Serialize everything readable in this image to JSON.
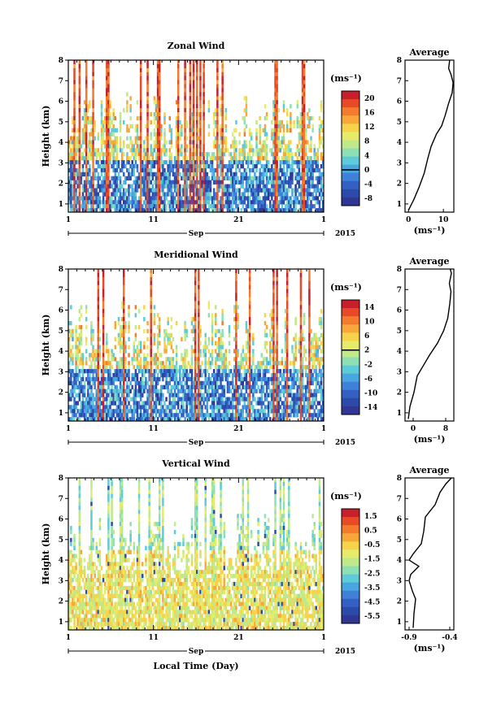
{
  "chart_data": [
    {
      "type": "heatmap",
      "title": "Zonal Wind",
      "ylabel": "Height (km)",
      "y_ticks": [
        "1",
        "2",
        "3",
        "4",
        "5",
        "6",
        "7",
        "8"
      ],
      "x_ticks": [
        "1",
        "11",
        "21",
        "1"
      ],
      "x_month": "Sep",
      "x_year": "2015",
      "colorbar_unit": "(ms⁻¹)",
      "colorbar_ticks": [
        "20",
        "16",
        "12",
        "8",
        "4",
        "0",
        "-4",
        "-8"
      ],
      "colorbar_range": [
        -10,
        22
      ],
      "ylim": [
        0.6,
        8
      ],
      "profile": {
        "title": "Average",
        "x_ticks": [
          "0",
          "10"
        ],
        "xlim": [
          -1,
          13
        ],
        "xlabel": "(ms⁻¹)",
        "y_ticks": [
          "1",
          "2",
          "3",
          "4",
          "5",
          "6",
          "7",
          "8"
        ],
        "points": [
          [
            0,
            0.7
          ],
          [
            1.5,
            1.2
          ],
          [
            3,
            1.8
          ],
          [
            4.5,
            2.5
          ],
          [
            5.5,
            3.2
          ],
          [
            6.5,
            3.8
          ],
          [
            8,
            4.4
          ],
          [
            9.5,
            4.8
          ],
          [
            10.5,
            5.3
          ],
          [
            11.5,
            5.9
          ],
          [
            12.5,
            6.4
          ],
          [
            12.8,
            6.9
          ],
          [
            12.2,
            7.3
          ],
          [
            11.5,
            7.6
          ],
          [
            11.8,
            8
          ]
        ]
      }
    },
    {
      "type": "heatmap",
      "title": "Meridional Wind",
      "ylabel": "Height (km)",
      "y_ticks": [
        "1",
        "2",
        "3",
        "4",
        "5",
        "6",
        "7",
        "8"
      ],
      "x_ticks": [
        "1",
        "11",
        "21",
        "1"
      ],
      "x_month": "Sep",
      "x_year": "2015",
      "colorbar_unit": "(ms⁻¹)",
      "colorbar_ticks": [
        "14",
        "10",
        "6",
        "2",
        "-2",
        "-6",
        "-10",
        "-14"
      ],
      "colorbar_range": [
        -16,
        16
      ],
      "ylim": [
        0.6,
        8
      ],
      "profile": {
        "title": "Average",
        "x_ticks": [
          "0",
          "8"
        ],
        "xlim": [
          -2,
          10
        ],
        "xlabel": "(ms⁻¹)",
        "y_ticks": [
          "1",
          "2",
          "3",
          "4",
          "5",
          "6",
          "7",
          "8"
        ],
        "points": [
          [
            -1.2,
            0.7
          ],
          [
            -0.8,
            1.3
          ],
          [
            0.2,
            2
          ],
          [
            1,
            2.8
          ],
          [
            2.5,
            3.3
          ],
          [
            4,
            3.8
          ],
          [
            6,
            4.4
          ],
          [
            7.5,
            5
          ],
          [
            8.5,
            5.6
          ],
          [
            9,
            6.3
          ],
          [
            9.3,
            6.9
          ],
          [
            8.9,
            7.3
          ],
          [
            9.4,
            7.8
          ],
          [
            9.1,
            8
          ]
        ]
      }
    },
    {
      "type": "heatmap",
      "title": "Vertical Wind",
      "ylabel": "Height (km)",
      "xlabel": "Local Time (Day)",
      "y_ticks": [
        "1",
        "2",
        "3",
        "4",
        "5",
        "6",
        "7",
        "8"
      ],
      "x_ticks": [
        "1",
        "11",
        "21",
        "1"
      ],
      "x_month": "Sep",
      "x_year": "2015",
      "colorbar_unit": "(ms⁻¹)",
      "colorbar_ticks": [
        "1.5",
        "0.5",
        "-0.5",
        "-1.5",
        "-2.5",
        "-3.5",
        "-4.5",
        "-5.5"
      ],
      "colorbar_range": [
        -6,
        2
      ],
      "ylim": [
        0.6,
        8
      ],
      "profile": {
        "title": "Average",
        "x_ticks": [
          "-0.9",
          "-0.4"
        ],
        "xlim": [
          -0.95,
          -0.35
        ],
        "xlabel": "(ms⁻¹)",
        "y_ticks": [
          "1",
          "2",
          "3",
          "4",
          "5",
          "6",
          "7",
          "8"
        ],
        "points": [
          [
            -0.85,
            0.7
          ],
          [
            -0.84,
            1.4
          ],
          [
            -0.82,
            2.1
          ],
          [
            -0.86,
            2.5
          ],
          [
            -0.9,
            3.0
          ],
          [
            -0.88,
            3.3
          ],
          [
            -0.78,
            3.7
          ],
          [
            -0.9,
            4.0
          ],
          [
            -0.85,
            4.3
          ],
          [
            -0.75,
            4.8
          ],
          [
            -0.72,
            5.4
          ],
          [
            -0.7,
            6.1
          ],
          [
            -0.58,
            6.7
          ],
          [
            -0.52,
            7.3
          ],
          [
            -0.45,
            7.7
          ],
          [
            -0.38,
            8
          ]
        ]
      }
    }
  ]
}
